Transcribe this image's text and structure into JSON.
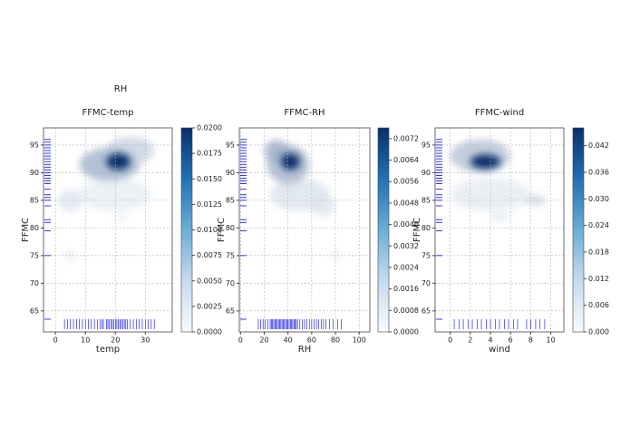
{
  "suptitle": "RH",
  "chart_data": [
    {
      "type": "kde",
      "title": "FFMC-temp",
      "xlabel": "temp",
      "ylabel": "FFMC",
      "xlim": [
        -4,
        39
      ],
      "xticks": [
        0,
        10,
        20,
        30
      ],
      "ylim": [
        61.2,
        98.1
      ],
      "yticks": [
        65,
        70,
        75,
        80,
        85,
        90,
        95
      ],
      "grid": true,
      "cbar_lim": [
        0,
        0.02
      ],
      "cbar_ticks": [
        {
          "value": 0,
          "label": "0.0000"
        },
        {
          "value": 0.0025,
          "label": "0.0025"
        },
        {
          "value": 0.005,
          "label": "0.0050"
        },
        {
          "value": 0.0075,
          "label": "0.0075"
        },
        {
          "value": 0.01,
          "label": "0.0100"
        },
        {
          "value": 0.0125,
          "label": "0.0125"
        },
        {
          "value": 0.015,
          "label": "0.0150"
        },
        {
          "value": 0.0175,
          "label": "0.0175"
        },
        {
          "value": 0.02,
          "label": "0.0200"
        }
      ],
      "density": [
        {
          "x": 20,
          "y": 86,
          "sx": 12,
          "sy": 3,
          "level": 0.002
        },
        {
          "x": 18,
          "y": 91.5,
          "sx": 10,
          "sy": 3,
          "level": 0.008
        },
        {
          "x": 25,
          "y": 94,
          "sx": 8,
          "sy": 2.5,
          "level": 0.005
        },
        {
          "x": 5,
          "y": 85,
          "sx": 4,
          "sy": 2,
          "level": 0.003
        },
        {
          "x": 5,
          "y": 75,
          "sx": 2,
          "sy": 1,
          "level": 0.002
        },
        {
          "x": 22,
          "y": 82,
          "sx": 2,
          "sy": 1,
          "level": 0.0015
        },
        {
          "x": 21,
          "y": 92,
          "sx": 4,
          "sy": 1.5,
          "level": 0.02
        }
      ],
      "rug_x": [
        3,
        4,
        5,
        6,
        7,
        8,
        9,
        10,
        11,
        12,
        13,
        14,
        15,
        15.5,
        16,
        17,
        17.5,
        18,
        18.5,
        19,
        19.5,
        20,
        20.5,
        21,
        21.5,
        22,
        22.5,
        23,
        23.5,
        24,
        25,
        26,
        27,
        28,
        29,
        30,
        31,
        32,
        33
      ],
      "rug_y": [
        96,
        95.5,
        95,
        94.5,
        94,
        93.5,
        93,
        92.5,
        92,
        91.5,
        91,
        90.5,
        90,
        89.5,
        89,
        88.5,
        88,
        87,
        86,
        85.5,
        85,
        84,
        81.5,
        81,
        79.5,
        75,
        63.5
      ],
      "rug_color": "#0000ff"
    },
    {
      "type": "kde",
      "title": "FFMC-RH",
      "xlabel": "RH",
      "ylabel": "FFMC",
      "xlim": [
        -1,
        109
      ],
      "xticks": [
        0,
        20,
        40,
        60,
        80,
        100
      ],
      "ylim": [
        61.2,
        98.1
      ],
      "yticks": [
        65,
        70,
        75,
        80,
        85,
        90,
        95
      ],
      "grid": true,
      "cbar_lim": [
        0,
        0.0076
      ],
      "cbar_ticks": [
        {
          "value": 0,
          "label": "0.0000"
        },
        {
          "value": 0.0008,
          "label": "0.0008"
        },
        {
          "value": 0.0016,
          "label": "0.0016"
        },
        {
          "value": 0.0024,
          "label": "0.0024"
        },
        {
          "value": 0.0032,
          "label": "0.0032"
        },
        {
          "value": 0.004,
          "label": "0.0040"
        },
        {
          "value": 0.0048,
          "label": "0.0048"
        },
        {
          "value": 0.0056,
          "label": "0.0056"
        },
        {
          "value": 0.0064,
          "label": "0.0064"
        },
        {
          "value": 0.0072,
          "label": "0.0072"
        }
      ],
      "density": [
        {
          "x": 50,
          "y": 86,
          "sx": 25,
          "sy": 3,
          "level": 0.0012
        },
        {
          "x": 40,
          "y": 91.5,
          "sx": 18,
          "sy": 3.5,
          "level": 0.003
        },
        {
          "x": 30,
          "y": 94,
          "sx": 10,
          "sy": 2,
          "level": 0.003
        },
        {
          "x": 70,
          "y": 84,
          "sx": 10,
          "sy": 2,
          "level": 0.001
        },
        {
          "x": 80,
          "y": 75,
          "sx": 4,
          "sy": 1,
          "level": 0.0008
        },
        {
          "x": 42,
          "y": 92,
          "sx": 8,
          "sy": 1.5,
          "level": 0.0076
        }
      ],
      "rug_x": [
        15,
        17,
        19,
        21,
        23,
        25,
        26,
        27,
        28,
        29,
        30,
        31,
        32,
        33,
        34,
        35,
        36,
        37,
        38,
        39,
        40,
        41,
        42,
        43,
        44,
        45,
        46,
        47,
        48,
        50,
        52,
        54,
        56,
        58,
        60,
        62,
        64,
        66,
        68,
        70,
        72,
        75,
        78,
        82,
        85
      ],
      "rug_y": [
        96,
        95.5,
        95,
        94.5,
        94,
        93.5,
        93,
        92.5,
        92,
        91.5,
        91,
        90.5,
        90,
        89.5,
        89,
        88.5,
        88,
        87,
        86,
        85.5,
        85,
        84,
        81.5,
        81,
        79.5,
        75,
        63.5
      ],
      "rug_color": "#0000ff"
    },
    {
      "type": "kde",
      "title": "FFMC-wind",
      "xlabel": "wind",
      "ylabel": "FFMC",
      "xlim": [
        -1.5,
        11.3
      ],
      "xticks": [
        0,
        2,
        4,
        6,
        8,
        10
      ],
      "ylim": [
        61.2,
        98.1
      ],
      "yticks": [
        65,
        70,
        75,
        80,
        85,
        90,
        95
      ],
      "grid": true,
      "cbar_lim": [
        0,
        0.046
      ],
      "cbar_ticks": [
        {
          "value": 0,
          "label": "0.000"
        },
        {
          "value": 0.006,
          "label": "0.006"
        },
        {
          "value": 0.012,
          "label": "0.012"
        },
        {
          "value": 0.018,
          "label": "0.018"
        },
        {
          "value": 0.024,
          "label": "0.024"
        },
        {
          "value": 0.03,
          "label": "0.030"
        },
        {
          "value": 0.036,
          "label": "0.036"
        },
        {
          "value": 0.042,
          "label": "0.042"
        }
      ],
      "density": [
        {
          "x": 4,
          "y": 86,
          "sx": 4,
          "sy": 3,
          "level": 0.005
        },
        {
          "x": 3,
          "y": 93,
          "sx": 3,
          "sy": 3,
          "level": 0.015
        },
        {
          "x": 8.5,
          "y": 85,
          "sx": 1,
          "sy": 1,
          "level": 0.01
        },
        {
          "x": 5,
          "y": 82,
          "sx": 1,
          "sy": 0.8,
          "level": 0.006
        },
        {
          "x": 3.5,
          "y": 92,
          "sx": 1.5,
          "sy": 1.3,
          "level": 0.046
        }
      ],
      "rug_x": [
        0.4,
        0.9,
        1.3,
        1.8,
        2.2,
        2.7,
        3.1,
        3.6,
        4,
        4.5,
        4.9,
        5.4,
        5.8,
        6.3,
        6.7,
        7.6,
        8,
        8.5,
        8.9,
        9.4
      ],
      "rug_y": [
        96,
        95.5,
        95,
        94.5,
        94,
        93.5,
        93,
        92.5,
        92,
        91.5,
        91,
        90.5,
        90,
        89.5,
        89,
        88.5,
        88,
        87,
        86,
        85.5,
        85,
        84,
        81.5,
        81,
        79.5,
        75,
        63.5
      ],
      "rug_color": "#0000ff"
    }
  ]
}
